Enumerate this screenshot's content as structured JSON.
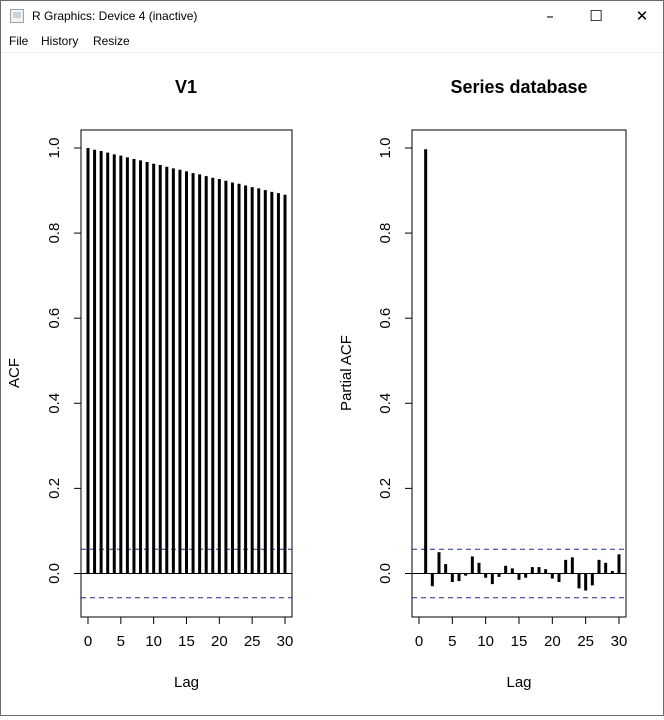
{
  "window": {
    "title": "R Graphics: Device 4 (inactive)",
    "controls": {
      "minimize": "–",
      "maximize": "☐",
      "close": "✕"
    }
  },
  "menu": {
    "items": [
      "File",
      "History",
      "Resize"
    ]
  },
  "chart_data": [
    {
      "type": "acf",
      "title": "V1",
      "xlabel": "Lag",
      "ylabel": "ACF",
      "xlim": [
        0,
        30
      ],
      "ylim": [
        -0.06,
        1.0
      ],
      "xticks": [
        0,
        5,
        10,
        15,
        20,
        25,
        30
      ],
      "yticks": [
        0.0,
        0.2,
        0.4,
        0.6,
        0.8,
        1.0
      ],
      "ci": 0.057,
      "x": [
        0,
        1,
        2,
        3,
        4,
        5,
        6,
        7,
        8,
        9,
        10,
        11,
        12,
        13,
        14,
        15,
        16,
        17,
        18,
        19,
        20,
        21,
        22,
        23,
        24,
        25,
        26,
        27,
        28,
        29,
        30
      ],
      "values": [
        1.0,
        0.996,
        0.993,
        0.989,
        0.985,
        0.982,
        0.978,
        0.974,
        0.971,
        0.967,
        0.963,
        0.96,
        0.956,
        0.952,
        0.949,
        0.945,
        0.941,
        0.938,
        0.934,
        0.93,
        0.927,
        0.923,
        0.919,
        0.916,
        0.912,
        0.908,
        0.905,
        0.901,
        0.897,
        0.894,
        0.89
      ],
      "colors": {
        "bars": "#000000",
        "ci": "#1f2a8a"
      }
    },
    {
      "type": "pacf",
      "title": "Series  database",
      "xlabel": "Lag",
      "ylabel": "Partial ACF",
      "xlim": [
        0,
        30
      ],
      "ylim": [
        -0.06,
        1.0
      ],
      "xticks": [
        0,
        5,
        10,
        15,
        20,
        25,
        30
      ],
      "yticks": [
        0.0,
        0.2,
        0.4,
        0.6,
        0.8,
        1.0
      ],
      "ci": 0.057,
      "x": [
        1,
        2,
        3,
        4,
        5,
        6,
        7,
        8,
        9,
        10,
        11,
        12,
        13,
        14,
        15,
        16,
        17,
        18,
        19,
        20,
        21,
        22,
        23,
        24,
        25,
        26,
        27,
        28,
        29,
        30
      ],
      "values": [
        0.997,
        -0.03,
        0.05,
        0.022,
        -0.02,
        -0.018,
        -0.005,
        0.04,
        0.025,
        -0.01,
        -0.025,
        -0.008,
        0.018,
        0.012,
        -0.015,
        -0.01,
        0.015,
        0.015,
        0.01,
        -0.012,
        -0.02,
        0.032,
        0.038,
        -0.035,
        -0.04,
        -0.028,
        0.032,
        0.025,
        0.006,
        0.045
      ],
      "colors": {
        "bars": "#000000",
        "ci": "#1f2a8a"
      }
    }
  ]
}
